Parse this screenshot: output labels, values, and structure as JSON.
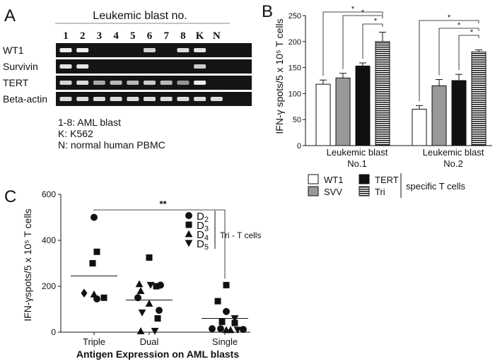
{
  "panels": {
    "A": {
      "letter": "A",
      "header": "Leukemic blast no.",
      "lanes": [
        "1",
        "2",
        "3",
        "4",
        "5",
        "6",
        "7",
        "8",
        "K",
        "N"
      ],
      "rows": [
        {
          "label": "WT1",
          "bands": [
            0.9,
            0.9,
            0,
            0,
            0,
            0.75,
            0,
            0.8,
            0.85,
            0
          ]
        },
        {
          "label": "Survivin",
          "bands": [
            0.85,
            0.85,
            0,
            0,
            0,
            0,
            0,
            0,
            0.7,
            0
          ]
        },
        {
          "label": "TERT",
          "bands": [
            0.75,
            0.8,
            0.5,
            0.6,
            0.6,
            0.7,
            0.6,
            0.4,
            0.9,
            0
          ]
        },
        {
          "label": "Beta-actin",
          "bands": [
            0.8,
            0.8,
            0.8,
            0.8,
            0.8,
            0.8,
            0.8,
            0.8,
            0.8,
            0.8
          ]
        }
      ],
      "notes": [
        "1-8: AML blast",
        "K: K562",
        "N: normal human PBMC"
      ]
    },
    "B": {
      "letter": "B",
      "ylabel": "IFN-γ spots/5 x 10⁵ T cells",
      "legend_suffix": "specific T cells",
      "legend_items": [
        {
          "label": "WT1",
          "style": "white"
        },
        {
          "label": "SVV",
          "style": "gray"
        },
        {
          "label": "TERT",
          "style": "black"
        },
        {
          "label": "Tri",
          "style": "striped"
        }
      ]
    },
    "C": {
      "letter": "C",
      "ylabel": "IFN-γspots/5 x 10⁵ T cells",
      "xlabel": "Antigen Expression on AML blasts",
      "significance": "**",
      "donor_legend": {
        "items": [
          {
            "marker": "circle",
            "label": "D2"
          },
          {
            "marker": "square",
            "label": "D3"
          },
          {
            "marker": "triangle-up",
            "label": "D4"
          },
          {
            "marker": "triangle-down",
            "label": "D5"
          }
        ],
        "group_label": "Tri - T cells"
      }
    }
  },
  "chart_data": [
    {
      "type": "bar",
      "panel": "B",
      "title": "",
      "categories": [
        "Leukemic blast No.1",
        "Leukemic blast No.2"
      ],
      "ylabel": "IFN-γ spots/5 x 10⁵ T cells",
      "ylim": [
        0,
        250
      ],
      "yticks": [
        0,
        50,
        100,
        150,
        200,
        250
      ],
      "series": [
        {
          "name": "WT1",
          "values": [
            118,
            70
          ],
          "errors": [
            8,
            7
          ]
        },
        {
          "name": "SVV",
          "values": [
            130,
            115
          ],
          "errors": [
            9,
            12
          ]
        },
        {
          "name": "TERT",
          "values": [
            153,
            125
          ],
          "errors": [
            6,
            12
          ]
        },
        {
          "name": "Tri",
          "values": [
            200,
            180
          ],
          "errors": [
            18,
            4
          ]
        }
      ],
      "significance_label": "*"
    },
    {
      "type": "scatter",
      "panel": "C",
      "title": "",
      "categories": [
        "Triple",
        "Dual",
        "Single"
      ],
      "ylabel": "IFN-γspots/5 x 10⁵ T cells",
      "xlabel": "Antigen Expression on AML blasts",
      "ylim": [
        0,
        600
      ],
      "yticks": [
        0,
        200,
        400,
        600
      ],
      "means": [
        245,
        140,
        60
      ],
      "series": [
        {
          "group": "Triple",
          "points": [
            {
              "marker": "circle",
              "value": 500
            },
            {
              "marker": "square",
              "value": 350
            },
            {
              "marker": "square",
              "value": 300
            },
            {
              "marker": "diamond",
              "value": 170
            },
            {
              "marker": "triangle-up",
              "value": 165
            },
            {
              "marker": "circle",
              "value": 145
            },
            {
              "marker": "square",
              "value": 150
            }
          ]
        },
        {
          "group": "Dual",
          "points": [
            {
              "marker": "square",
              "value": 325
            },
            {
              "marker": "triangle-up",
              "value": 210
            },
            {
              "marker": "square",
              "value": 200
            },
            {
              "marker": "triangle-down",
              "value": 205
            },
            {
              "marker": "circle",
              "value": 205
            },
            {
              "marker": "triangle-up",
              "value": 180
            },
            {
              "marker": "circle",
              "value": 150
            },
            {
              "marker": "triangle-up",
              "value": 125
            },
            {
              "marker": "circle",
              "value": 95
            },
            {
              "marker": "triangle-down",
              "value": 85
            },
            {
              "marker": "square",
              "value": 60
            },
            {
              "marker": "triangle-up",
              "value": 5
            },
            {
              "marker": "triangle-down",
              "value": 5
            }
          ]
        },
        {
          "group": "Single",
          "points": [
            {
              "marker": "square",
              "value": 205
            },
            {
              "marker": "square",
              "value": 135
            },
            {
              "marker": "circle",
              "value": 90
            },
            {
              "marker": "triangle-down",
              "value": 60
            },
            {
              "marker": "square",
              "value": 40
            },
            {
              "marker": "square",
              "value": 45
            },
            {
              "marker": "circle",
              "value": 15
            },
            {
              "marker": "circle",
              "value": 15
            },
            {
              "marker": "triangle-up",
              "value": 10
            },
            {
              "marker": "triangle-down",
              "value": 10
            },
            {
              "marker": "triangle-up",
              "value": 10
            },
            {
              "marker": "circle",
              "value": 12
            }
          ]
        }
      ]
    }
  ]
}
